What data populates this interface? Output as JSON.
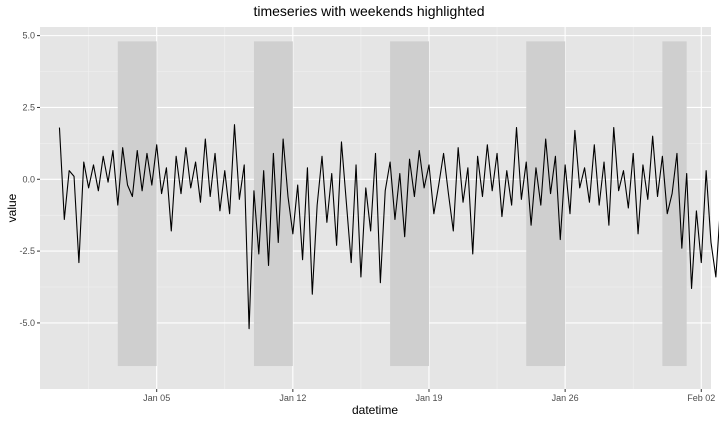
{
  "chart_data": {
    "type": "line",
    "title": "timeseries with weekends highlighted",
    "xlabel": "datetime",
    "ylabel": "value",
    "xlim": [
      "2024-12-30T00:00",
      "2025-02-02T12:00"
    ],
    "ylim": [
      -7.3,
      5.3
    ],
    "x_ticks": [
      "Jan 05",
      "Jan 12",
      "Jan 19",
      "Jan 26",
      "Feb 02"
    ],
    "y_ticks": [
      "5.0",
      "2.5",
      "0.0",
      "-2.5",
      "-5.0"
    ],
    "grid": true,
    "background": "#e5e5e5",
    "line_color": "#000000",
    "weekend_fill": "#cfcfcf",
    "weekends": [
      {
        "start": "2025-01-03T00:00",
        "end": "2025-01-05T00:00"
      },
      {
        "start": "2025-01-10T00:00",
        "end": "2025-01-12T00:00"
      },
      {
        "start": "2025-01-17T00:00",
        "end": "2025-01-19T00:00"
      },
      {
        "start": "2025-01-24T00:00",
        "end": "2025-01-26T00:00"
      },
      {
        "start": "2025-01-31T00:00",
        "end": "2025-02-01T06:00"
      }
    ],
    "band_y_range": [
      -6.5,
      4.8
    ],
    "series": [
      {
        "x_start": "2024-12-31T00:00",
        "step_hours": 6,
        "values": [
          1.8,
          -1.4,
          0.3,
          0.1,
          -2.9,
          0.6,
          -0.3,
          0.5,
          -0.4,
          0.8,
          -0.1,
          1.0,
          -0.9,
          1.1,
          -0.2,
          -0.6,
          1.0,
          -0.4,
          0.9,
          -0.2,
          1.2,
          -0.5,
          0.4,
          -1.8,
          0.8,
          -0.5,
          1.1,
          -0.3,
          0.6,
          -0.8,
          1.4,
          -0.6,
          0.9,
          -1.1,
          0.3,
          -1.2,
          1.9,
          -0.7,
          0.5,
          -5.2,
          -0.4,
          -2.6,
          0.3,
          -3.0,
          0.9,
          -2.2,
          1.4,
          -0.6,
          -1.9,
          -0.2,
          -2.8,
          0.4,
          -4.0,
          -0.9,
          0.8,
          -1.5,
          0.2,
          -2.3,
          1.3,
          -0.8,
          -2.9,
          0.5,
          -3.4,
          -0.3,
          -1.8,
          0.9,
          -3.6,
          -0.4,
          0.6,
          -1.4,
          0.2,
          -2.0,
          0.7,
          -0.6,
          1.0,
          -0.3,
          0.5,
          -1.2,
          -0.2,
          0.9,
          -0.5,
          -1.8,
          1.1,
          -0.8,
          0.4,
          -2.6,
          0.8,
          -0.6,
          1.2,
          -0.4,
          0.9,
          -1.3,
          0.3,
          -0.9,
          1.8,
          -0.7,
          0.6,
          -1.6,
          0.4,
          -0.9,
          1.4,
          -0.5,
          0.8,
          -2.1,
          0.5,
          -1.2,
          1.7,
          -0.3,
          0.4,
          -0.8,
          1.2,
          -0.9,
          0.6,
          -1.6,
          1.8,
          -0.4,
          0.3,
          -1.0,
          0.9,
          -1.9,
          0.5,
          -0.7,
          1.5,
          -0.6,
          0.8,
          -1.2,
          -0.5,
          0.9,
          -2.4,
          0.2,
          -3.8,
          -1.1,
          -2.9,
          0.3,
          -2.2,
          -3.4,
          -0.8,
          -2.6,
          -1.5,
          -3.3,
          -0.6,
          -4.4,
          -1.8,
          -2.5,
          -0.4,
          -3.1,
          -1.2,
          -2.7,
          -0.9,
          -3.0,
          -1.6,
          -2.3,
          0.4,
          -2.8,
          -1.4,
          -0.3,
          -2.5,
          -1.0,
          -1.9,
          0.2,
          -2.2,
          -0.8,
          2.0,
          -1.5,
          0.6,
          -0.4,
          3.8,
          -1.6,
          0.8,
          0.2,
          -0.5,
          1.1,
          -0.7,
          0.5,
          -1.3,
          1.6,
          -0.9,
          0.7,
          -0.3,
          1.2,
          -2.0,
          0.4,
          -0.7,
          0.9,
          -0.4,
          0.6,
          -1.1,
          0.5,
          -1.6,
          1.0,
          -0.6,
          0.7,
          -2.3,
          0.3,
          -0.5,
          1.4,
          -0.8,
          0.6,
          -1.3,
          1.2,
          -0.9,
          0.5,
          -0.3,
          1.9,
          -1.0,
          0.4,
          -1.7,
          0.8,
          -0.5,
          1.1,
          -0.8,
          1.5,
          -0.6,
          0.4,
          -1.1,
          0.7,
          -1.9,
          1.0,
          -0.3,
          0.8,
          -1.4,
          0.5,
          -0.6,
          1.3,
          -0.9,
          0.6,
          -1.2,
          0.9,
          -0.7,
          1.6,
          -2.1,
          -0.4,
          -3.2,
          -1.3,
          -2.6,
          -0.8,
          -3.9,
          -1.5,
          -2.2,
          -4.6,
          -0.9,
          -2.8,
          -1.6,
          -3.5,
          -0.5,
          -2.4,
          -4.7,
          -1.2,
          -2.9,
          -0.7,
          -3.3,
          -1.8,
          -4.2,
          -1.0,
          -2.5,
          -0.3,
          -3.0,
          -1.4,
          -4.3,
          -0.8,
          -2.2,
          -5.6,
          1.1,
          -0.2,
          0.6,
          -0.9,
          0.4,
          0.9,
          -0.4,
          2.2,
          -0.8,
          0.5,
          -1.5,
          1.2,
          -0.6,
          0.4,
          -1.1,
          1.6,
          -0.9,
          0.7,
          -0.3,
          1.3,
          -1.7,
          0.6,
          -0.5,
          1.0,
          -1.3,
          0.8,
          -0.4,
          1.5,
          -2.0,
          0.3,
          -0.8,
          1.1,
          -0.6,
          0.5,
          -1.2,
          0.9,
          -0.3,
          1.4,
          -0.8,
          0.6,
          -1.6,
          1.0,
          -0.5,
          0.3,
          -2.2,
          0.7,
          -0.9,
          1.8,
          -0.4,
          0.5,
          -1.0,
          1.2,
          -0.7,
          0.8,
          -1.8,
          0.4,
          -0.6,
          1.3,
          -0.2,
          0.9,
          -1.4,
          0.6,
          -0.8,
          1.6,
          -0.5,
          0.3,
          -1.1,
          0.8,
          -0.9,
          1.1,
          -0.6,
          0.5,
          -2.4,
          0.4,
          -0.7,
          1.2,
          -1.3,
          0.2,
          -3.0,
          -0.9,
          -1.9,
          -0.4,
          -2.7,
          -1.1,
          -3.4,
          -0.6,
          -2.2,
          -1.7,
          -3.8,
          -0.8,
          -2.5,
          -1.3,
          -4.0,
          -0.5,
          -3.1,
          -1.6,
          -2.3,
          -5.3,
          -0.9,
          -2.8,
          -1.4,
          -3.6,
          -0.7,
          -2.1,
          -1.8,
          -3.2,
          -0.4,
          -2.6,
          -1.1,
          2.0,
          -0.5,
          1.3,
          -0.9,
          0.6,
          -1.6,
          1.1,
          -0.3,
          2.4,
          -0.8,
          0.5,
          -1.2,
          1.7,
          -0.6,
          3.0,
          -0.9,
          0.4,
          -1.5,
          1.9,
          -0.7,
          0.8,
          -1.2,
          2.3,
          -0.4,
          0.6,
          -1.8,
          1.2,
          -0.9,
          0.5,
          -1.3,
          1.6,
          -0.5,
          0.7,
          -1.0,
          1.3,
          -2.0,
          0.4,
          -0.8,
          1.1,
          -0.6,
          1.8,
          -1.1,
          0.3,
          -0.9,
          1.5,
          -0.4,
          0.7,
          -1.6,
          1.2,
          -0.7,
          0.5,
          -1.4,
          1.0,
          -0.8,
          1.7,
          -0.6,
          0.4,
          -1.9,
          0.9,
          -0.5,
          1.4,
          -1.0,
          0.6,
          -1.7,
          1.1,
          -0.4,
          1.8,
          -0.9,
          0.5,
          -1.2,
          1.3,
          -0.7,
          0.8,
          -1.5,
          1.6,
          -3.8,
          -0.8,
          -1.4,
          -2.1,
          0.2,
          -3.1,
          -1.6,
          -2.2,
          -0.5,
          -3.2,
          -1.2,
          -2.0,
          -3.8,
          -0.7,
          -1.5,
          -2.8,
          -0.9,
          -1.7,
          -5.6
        ]
      }
    ]
  }
}
